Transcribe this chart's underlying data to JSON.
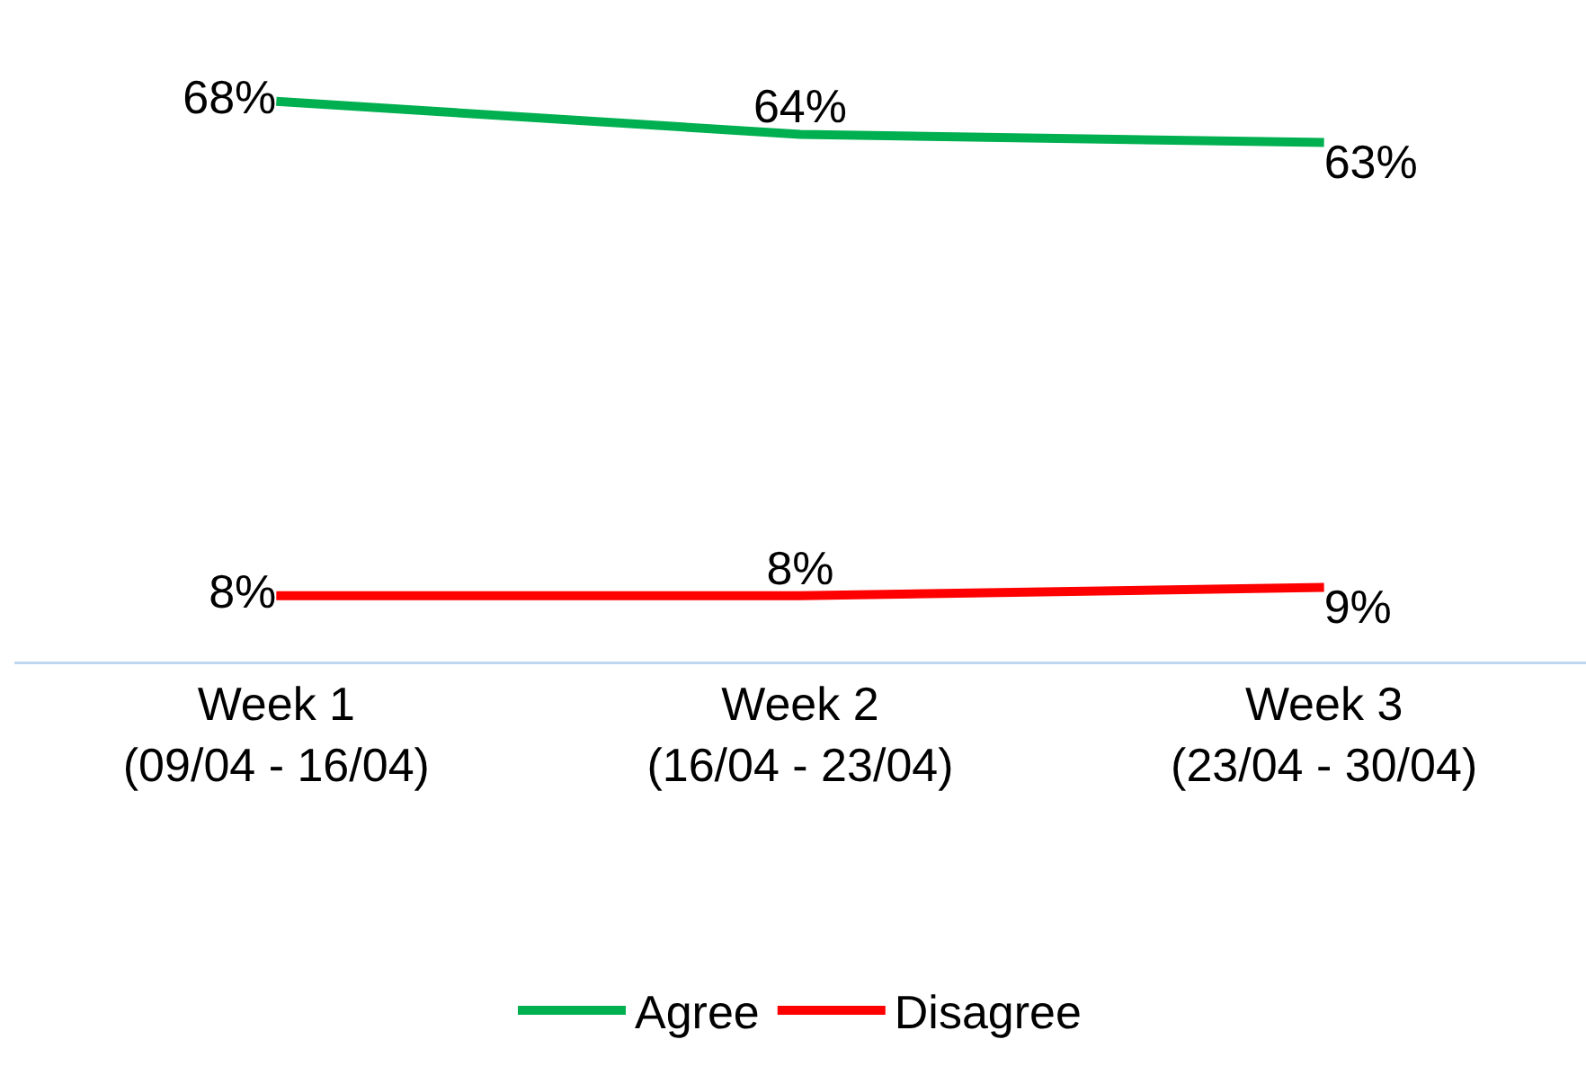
{
  "chart_data": {
    "type": "line",
    "categories": [
      "Week 1\n(09/04 - 16/04)",
      "Week 2\n(16/04 - 23/04)",
      "Week 3\n(23/04 - 30/04)"
    ],
    "series": [
      {
        "name": "Agree",
        "color": "#00b050",
        "values": [
          68,
          64,
          63
        ],
        "value_labels": [
          "68%",
          "64%",
          "63%"
        ]
      },
      {
        "name": "Disagree",
        "color": "#ff0000",
        "values": [
          8,
          8,
          9
        ],
        "value_labels": [
          "8%",
          "8%",
          "9%"
        ]
      }
    ],
    "legend": "bottom",
    "marker": "none",
    "line_style": "solid",
    "grid": false,
    "tick_labels": "x"
  }
}
